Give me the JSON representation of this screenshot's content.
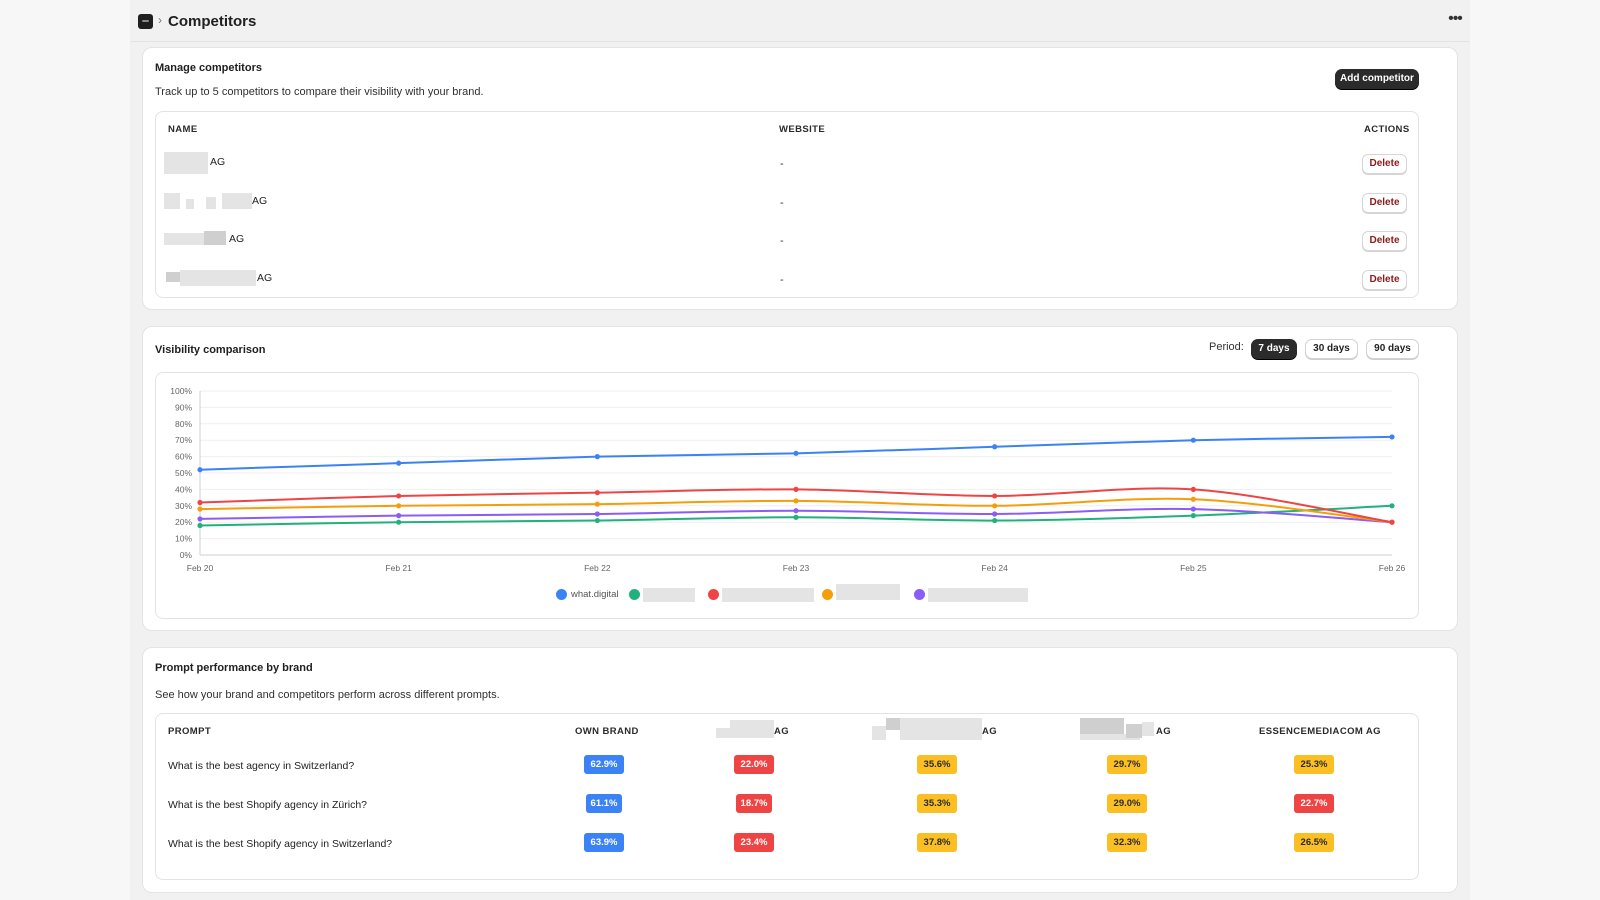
{
  "header": {
    "title": "Competitors",
    "separator": "›",
    "more_icon": "more-horizontal-icon"
  },
  "manage": {
    "title": "Manage competitors",
    "subtitle": "Track up to 5 competitors to compare their visibility with your brand.",
    "add_button": "Add competitor",
    "columns": [
      "NAME",
      "WEBSITE",
      "ACTIONS"
    ],
    "rows": [
      {
        "name_suffix": "AG",
        "website": "-",
        "action": "Delete"
      },
      {
        "name_suffix": "AG",
        "website": "-",
        "action": "Delete"
      },
      {
        "name_suffix": "AG",
        "website": "-",
        "action": "Delete"
      },
      {
        "name_suffix": "AG",
        "website": "-",
        "action": "Delete"
      }
    ]
  },
  "visibility": {
    "title": "Visibility comparison",
    "period_label": "Period:",
    "periods": [
      "7 days",
      "30 days",
      "90 days"
    ],
    "selected_period": "7 days",
    "legend_first": "what.digital"
  },
  "chart_data": {
    "type": "line",
    "x": [
      "Feb 20",
      "Feb 21",
      "Feb 22",
      "Feb 23",
      "Feb 24",
      "Feb 25",
      "Feb 26"
    ],
    "y_ticks": [
      "0%",
      "10%",
      "20%",
      "30%",
      "40%",
      "50%",
      "60%",
      "70%",
      "80%",
      "90%",
      "100%"
    ],
    "ylim": [
      0,
      100
    ],
    "grid": true,
    "legend_position": "bottom",
    "series": [
      {
        "name": "what.digital",
        "color": "#3b82f6",
        "values": [
          52,
          56,
          60,
          62,
          66,
          70,
          72
        ]
      },
      {
        "color": "#22b07d",
        "values": [
          18,
          20,
          21,
          23,
          21,
          24,
          30
        ]
      },
      {
        "color": "#ef4444",
        "values": [
          32,
          36,
          38,
          40,
          36,
          40,
          20
        ]
      },
      {
        "color": "#f59e0b",
        "values": [
          28,
          30,
          31,
          33,
          30,
          34,
          20
        ]
      },
      {
        "color": "#8b5cf6",
        "values": [
          22,
          24,
          25,
          27,
          25,
          28,
          20
        ]
      }
    ]
  },
  "prompts": {
    "title": "Prompt performance by brand",
    "subtitle": "See how your brand and competitors perform across different prompts.",
    "columns": [
      "PROMPT",
      "OWN BRAND",
      "AG",
      "AG",
      "AG",
      "ESSENCEMEDIACOM AG"
    ],
    "rows": [
      {
        "prompt": "What is the best agency in Switzerland?",
        "cells": [
          {
            "value": "62.9%",
            "level": "blue"
          },
          {
            "value": "22.0%",
            "level": "red"
          },
          {
            "value": "35.6%",
            "level": "yellow"
          },
          {
            "value": "29.7%",
            "level": "yellow"
          },
          {
            "value": "25.3%",
            "level": "yellow"
          }
        ]
      },
      {
        "prompt": "What is the best Shopify agency in Zürich?",
        "cells": [
          {
            "value": "61.1%",
            "level": "blue"
          },
          {
            "value": "18.7%",
            "level": "red"
          },
          {
            "value": "35.3%",
            "level": "yellow"
          },
          {
            "value": "29.0%",
            "level": "yellow"
          },
          {
            "value": "22.7%",
            "level": "red"
          }
        ]
      },
      {
        "prompt": "What is the best Shopify agency in Switzerland?",
        "cells": [
          {
            "value": "63.9%",
            "level": "blue"
          },
          {
            "value": "23.4%",
            "level": "red"
          },
          {
            "value": "37.8%",
            "level": "yellow"
          },
          {
            "value": "32.3%",
            "level": "yellow"
          },
          {
            "value": "26.5%",
            "level": "yellow"
          }
        ]
      }
    ]
  }
}
